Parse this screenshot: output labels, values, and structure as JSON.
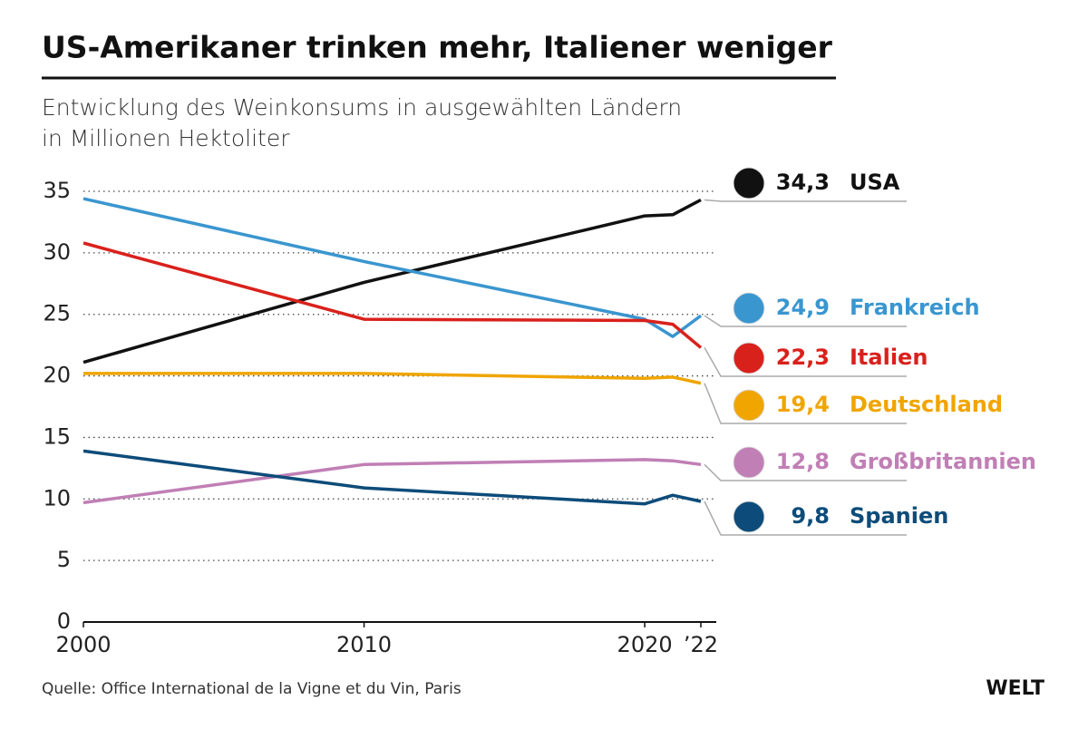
{
  "chart_data": {
    "type": "line",
    "title": "US-Amerikaner trinken mehr, Italiener weniger",
    "subtitle": "Entwicklung des Weinkonsums in ausgewählten Ländern",
    "y_label": "in Millionen Hektoliter",
    "source": "Quelle: Office International de la Vigne et du Vin, Paris",
    "brand": "WELT",
    "x": [
      2000,
      2010,
      2020,
      2021,
      2022
    ],
    "xlim": [
      2000,
      2022
    ],
    "xticks": [
      2000,
      2010,
      2020,
      {
        "value": 2022,
        "label": "’22"
      }
    ],
    "ylim": [
      0,
      35
    ],
    "yticks": [
      0,
      5,
      10,
      15,
      20,
      25,
      30,
      35
    ],
    "grid": true,
    "series": [
      {
        "name": "USA",
        "color": "#111111",
        "values": [
          21.1,
          27.6,
          33.0,
          33.1,
          34.3
        ],
        "value_labels": [
          null,
          null,
          null,
          null,
          "34,3"
        ]
      },
      {
        "name": "Frankreich",
        "color": "#3a96cf",
        "values": [
          34.4,
          29.3,
          24.6,
          23.2,
          24.9
        ],
        "value_labels": [
          null,
          null,
          null,
          null,
          "24,9"
        ]
      },
      {
        "name": "Italien",
        "color": "#d9211c",
        "values": [
          30.8,
          24.6,
          24.5,
          24.2,
          22.3
        ],
        "value_labels": [
          null,
          null,
          null,
          null,
          "22,3"
        ]
      },
      {
        "name": "Deutschland",
        "color": "#f0a500",
        "values": [
          20.2,
          20.2,
          19.8,
          19.9,
          19.4
        ],
        "value_labels": [
          null,
          null,
          null,
          null,
          "19,4"
        ]
      },
      {
        "name": "Großbritannien",
        "color": "#c07fb5",
        "values": [
          9.7,
          12.8,
          13.2,
          13.1,
          12.8
        ],
        "value_labels": [
          null,
          null,
          null,
          null,
          "12,8"
        ]
      },
      {
        "name": "Spanien",
        "color": "#0d4c7a",
        "values": [
          13.9,
          10.9,
          9.6,
          10.3,
          9.8
        ],
        "value_labels": [
          null,
          null,
          null,
          null,
          "9,8"
        ]
      }
    ]
  }
}
